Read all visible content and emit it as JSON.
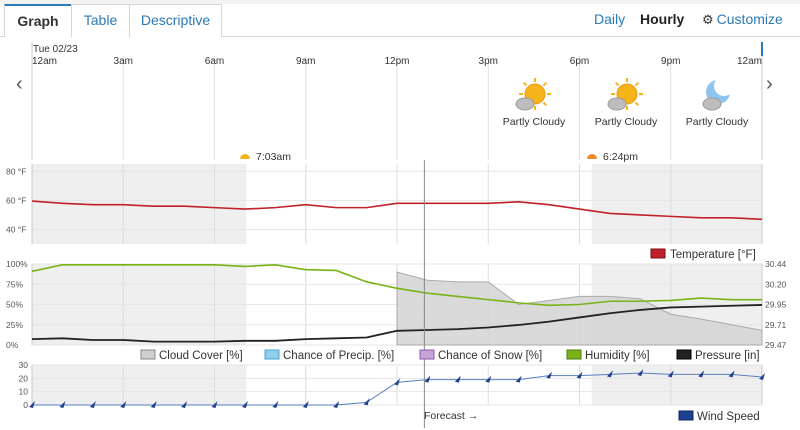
{
  "tabs": [
    {
      "label": "Graph",
      "active": true
    },
    {
      "label": "Table",
      "active": false
    },
    {
      "label": "Descriptive",
      "active": false
    }
  ],
  "view_modes": {
    "daily": "Daily",
    "hourly": "Hourly",
    "customize": "Customize",
    "selected": "Hourly"
  },
  "nav": {
    "prev": "‹",
    "next": "›"
  },
  "date_label": "Tue 02/23",
  "time_labels": [
    "12am",
    "3am",
    "6am",
    "9am",
    "12pm",
    "3pm",
    "6pm",
    "9pm",
    "12am"
  ],
  "conditions": [
    {
      "label": "Partly Cloudy",
      "icon": "partly-cloudy-day-icon"
    },
    {
      "label": "Partly Cloudy",
      "icon": "partly-cloudy-day-icon"
    },
    {
      "label": "Partly Cloudy",
      "icon": "partly-cloudy-night-icon"
    }
  ],
  "sun": {
    "sunrise": "7:03am",
    "sunset": "6:24pm"
  },
  "colors": {
    "temperature": "#c0202a",
    "humidity": "#7ab317",
    "pressure": "#222222",
    "cloud_cover": "#cfcfcf",
    "precip": "#8fd0ec",
    "snow": "#c7a4d8",
    "wind": "#1f3f8f",
    "night": "#efefef",
    "link": "#2a79b7"
  },
  "chart_data": [
    {
      "type": "line",
      "title": "Temperature",
      "x_hours": [
        0,
        1,
        2,
        3,
        4,
        5,
        6,
        7,
        8,
        9,
        10,
        11,
        12,
        13,
        14,
        15,
        16,
        17,
        18,
        19,
        20,
        21,
        22,
        23,
        24
      ],
      "series": [
        {
          "name": "Temperature [°F]",
          "unit": "°F",
          "values": [
            59.5,
            58,
            57,
            57,
            56,
            56,
            55,
            54,
            55,
            57,
            55,
            55,
            58,
            58,
            58,
            58,
            59,
            57,
            54,
            51,
            50,
            49,
            48,
            48,
            47
          ]
        }
      ],
      "y_ticks": [
        "40 °F",
        "60 °F",
        "80 °F"
      ],
      "ylim": [
        30,
        85
      ]
    },
    {
      "type": "area",
      "title": "Cloud Cover / Humidity / Pressure",
      "x_hours": [
        0,
        1,
        2,
        3,
        4,
        5,
        6,
        7,
        8,
        9,
        10,
        11,
        12,
        13,
        14,
        15,
        16,
        17,
        18,
        19,
        20,
        21,
        22,
        23,
        24
      ],
      "forecast_start_hour": 12.9,
      "series": [
        {
          "name": "Cloud Cover [%]",
          "unit": "%",
          "start_hour": 12,
          "values": [
            null,
            null,
            null,
            null,
            null,
            null,
            null,
            null,
            null,
            null,
            null,
            null,
            90,
            80,
            78,
            78,
            50,
            55,
            60,
            60,
            57,
            38,
            32,
            25,
            18
          ]
        },
        {
          "name": "Chance of Precip. [%]",
          "unit": "%",
          "values": []
        },
        {
          "name": "Chance of Snow [%]",
          "unit": "%",
          "values": []
        },
        {
          "name": "Humidity [%]",
          "unit": "%",
          "values": [
            91,
            99,
            99,
            99,
            99,
            99,
            99,
            97,
            99,
            93,
            92,
            78,
            70,
            64,
            60,
            56,
            52,
            49,
            50,
            54,
            54,
            55,
            58,
            56,
            56
          ]
        },
        {
          "name": "Pressure [in]",
          "unit": "in",
          "values": [
            29.54,
            29.55,
            29.53,
            29.53,
            29.51,
            29.51,
            29.51,
            29.52,
            29.52,
            29.54,
            29.55,
            29.56,
            29.64,
            29.65,
            29.66,
            29.68,
            29.71,
            29.75,
            29.8,
            29.85,
            29.89,
            29.92,
            29.93,
            29.94,
            29.95
          ]
        }
      ],
      "y_left_ticks": [
        "0%",
        "25%",
        "50%",
        "75%",
        "100%"
      ],
      "y_right_ticks": [
        "29.47",
        "29.71",
        "29.95",
        "30.20",
        "30.44"
      ],
      "ylim_left": [
        0,
        100
      ],
      "ylim_right": [
        29.47,
        30.44
      ]
    },
    {
      "type": "line",
      "title": "Wind Speed",
      "x_hours": [
        0,
        1,
        2,
        3,
        4,
        5,
        6,
        7,
        8,
        9,
        10,
        11,
        12,
        13,
        14,
        15,
        16,
        17,
        18,
        19,
        20,
        21,
        22,
        23,
        24
      ],
      "series": [
        {
          "name": "Wind Speed",
          "unit": "mph",
          "values": [
            0,
            0,
            0,
            0,
            0,
            0,
            0,
            0,
            0,
            0,
            0,
            2,
            17,
            19,
            19,
            19,
            19,
            22,
            22,
            23,
            24,
            23,
            23,
            23,
            21
          ]
        }
      ],
      "y_ticks": [
        "0",
        "10",
        "20",
        "30"
      ],
      "ylim": [
        0,
        30
      ]
    }
  ],
  "legend": {
    "temperature": "Temperature [°F]",
    "cloud_cover": "Cloud Cover [%]",
    "precip": "Chance of Precip. [%]",
    "snow": "Chance of Snow [%]",
    "humidity": "Humidity [%]",
    "pressure": "Pressure [in]",
    "wind": "Wind Speed"
  },
  "forecast_label": "Forecast →"
}
